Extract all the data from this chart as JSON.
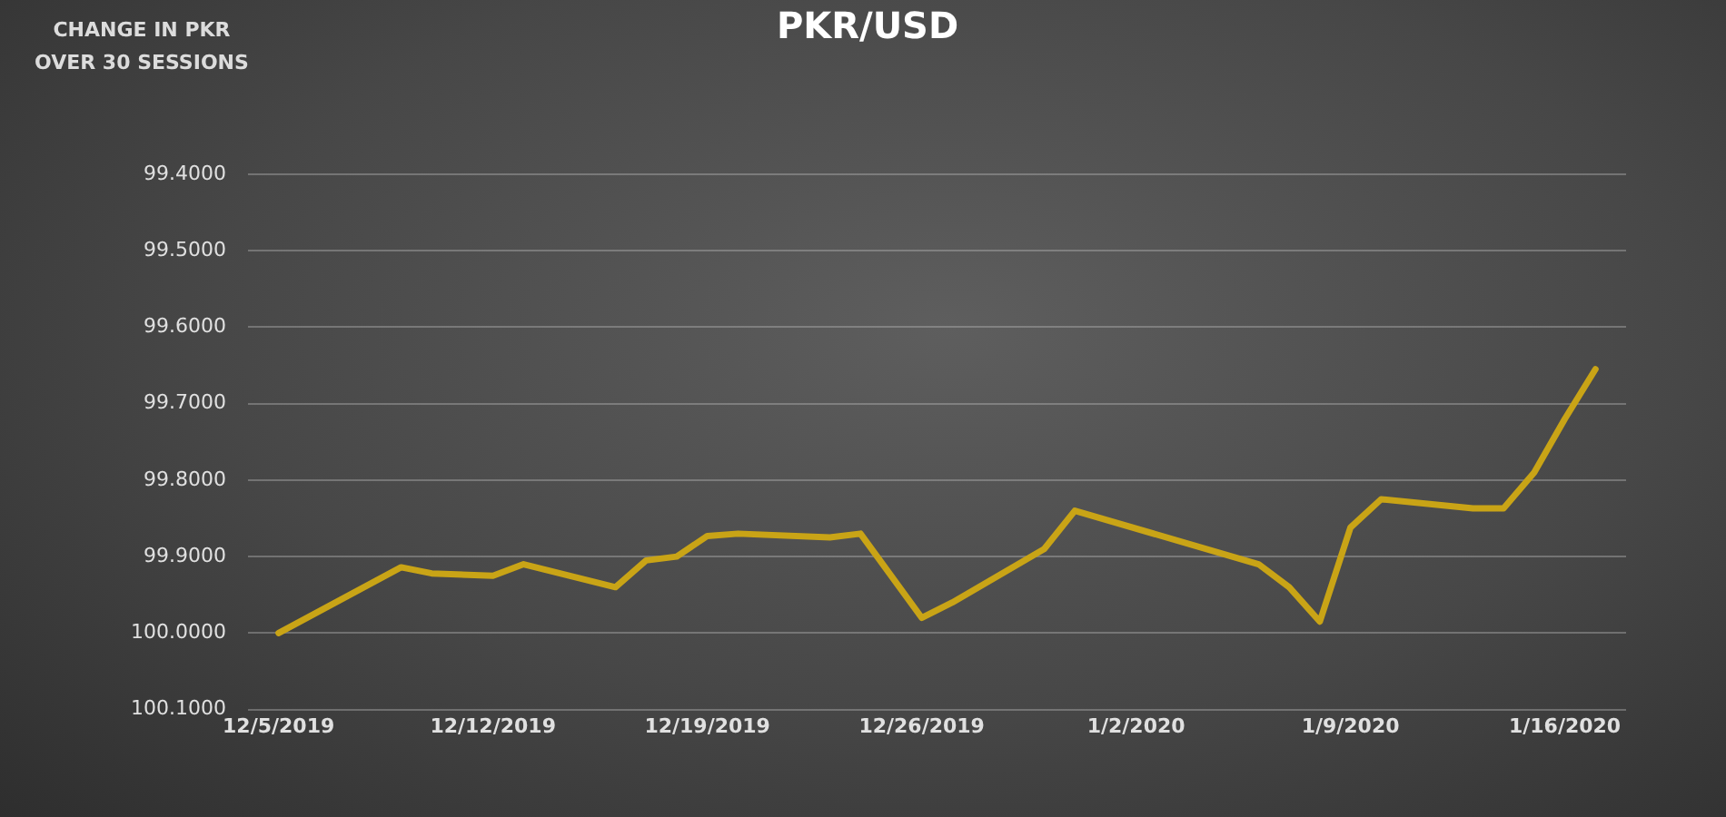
{
  "chart_data": {
    "type": "line",
    "title": "PKR/USD",
    "ylabel": "CHANGE IN PKR OVER 30 SESSIONS",
    "x": [
      "2019-12-05",
      "2019-12-09",
      "2019-12-10",
      "2019-12-12",
      "2019-12-13",
      "2019-12-16",
      "2019-12-17",
      "2019-12-18",
      "2019-12-19",
      "2019-12-20",
      "2019-12-23",
      "2019-12-24",
      "2019-12-26",
      "2019-12-27",
      "2019-12-30",
      "2019-12-31",
      "2020-01-06",
      "2020-01-07",
      "2020-01-08",
      "2020-01-09",
      "2020-01-10",
      "2020-01-13",
      "2020-01-14",
      "2020-01-15",
      "2020-01-16",
      "2020-01-17"
    ],
    "series": [
      {
        "color": "#c9a416",
        "values": [
          100.0,
          99.914,
          99.922,
          99.925,
          99.91,
          99.94,
          99.905,
          99.9,
          99.873,
          99.87,
          99.875,
          99.87,
          99.98,
          99.96,
          99.89,
          99.84,
          99.91,
          99.94,
          99.985,
          99.862,
          99.825,
          99.837,
          99.837,
          99.79,
          99.72,
          99.655
        ]
      }
    ],
    "xlim": [
      "2019-12-04",
      "2020-01-18"
    ],
    "xticks": [
      {
        "value": "2019-12-05",
        "label": "12/5/2019"
      },
      {
        "value": "2019-12-12",
        "label": "12/12/2019"
      },
      {
        "value": "2019-12-19",
        "label": "12/19/2019"
      },
      {
        "value": "2019-12-26",
        "label": "12/26/2019"
      },
      {
        "value": "2020-01-02",
        "label": "1/2/2020"
      },
      {
        "value": "2020-01-09",
        "label": "1/9/2020"
      },
      {
        "value": "2020-01-16",
        "label": "1/16/2020"
      }
    ],
    "ylim": [
      100.1,
      99.4
    ],
    "yticks": [
      {
        "value": 99.4,
        "label": "99.4000"
      },
      {
        "value": 99.5,
        "label": "99.5000"
      },
      {
        "value": 99.6,
        "label": "99.6000"
      },
      {
        "value": 99.7,
        "label": "99.7000"
      },
      {
        "value": 99.8,
        "label": "99.8000"
      },
      {
        "value": 99.9,
        "label": "99.9000"
      },
      {
        "value": 100.0,
        "label": "100.0000"
      },
      {
        "value": 100.1,
        "label": "100.1000"
      }
    ],
    "grid": "y",
    "legend": false,
    "marker": "none",
    "line_style": "solid"
  }
}
